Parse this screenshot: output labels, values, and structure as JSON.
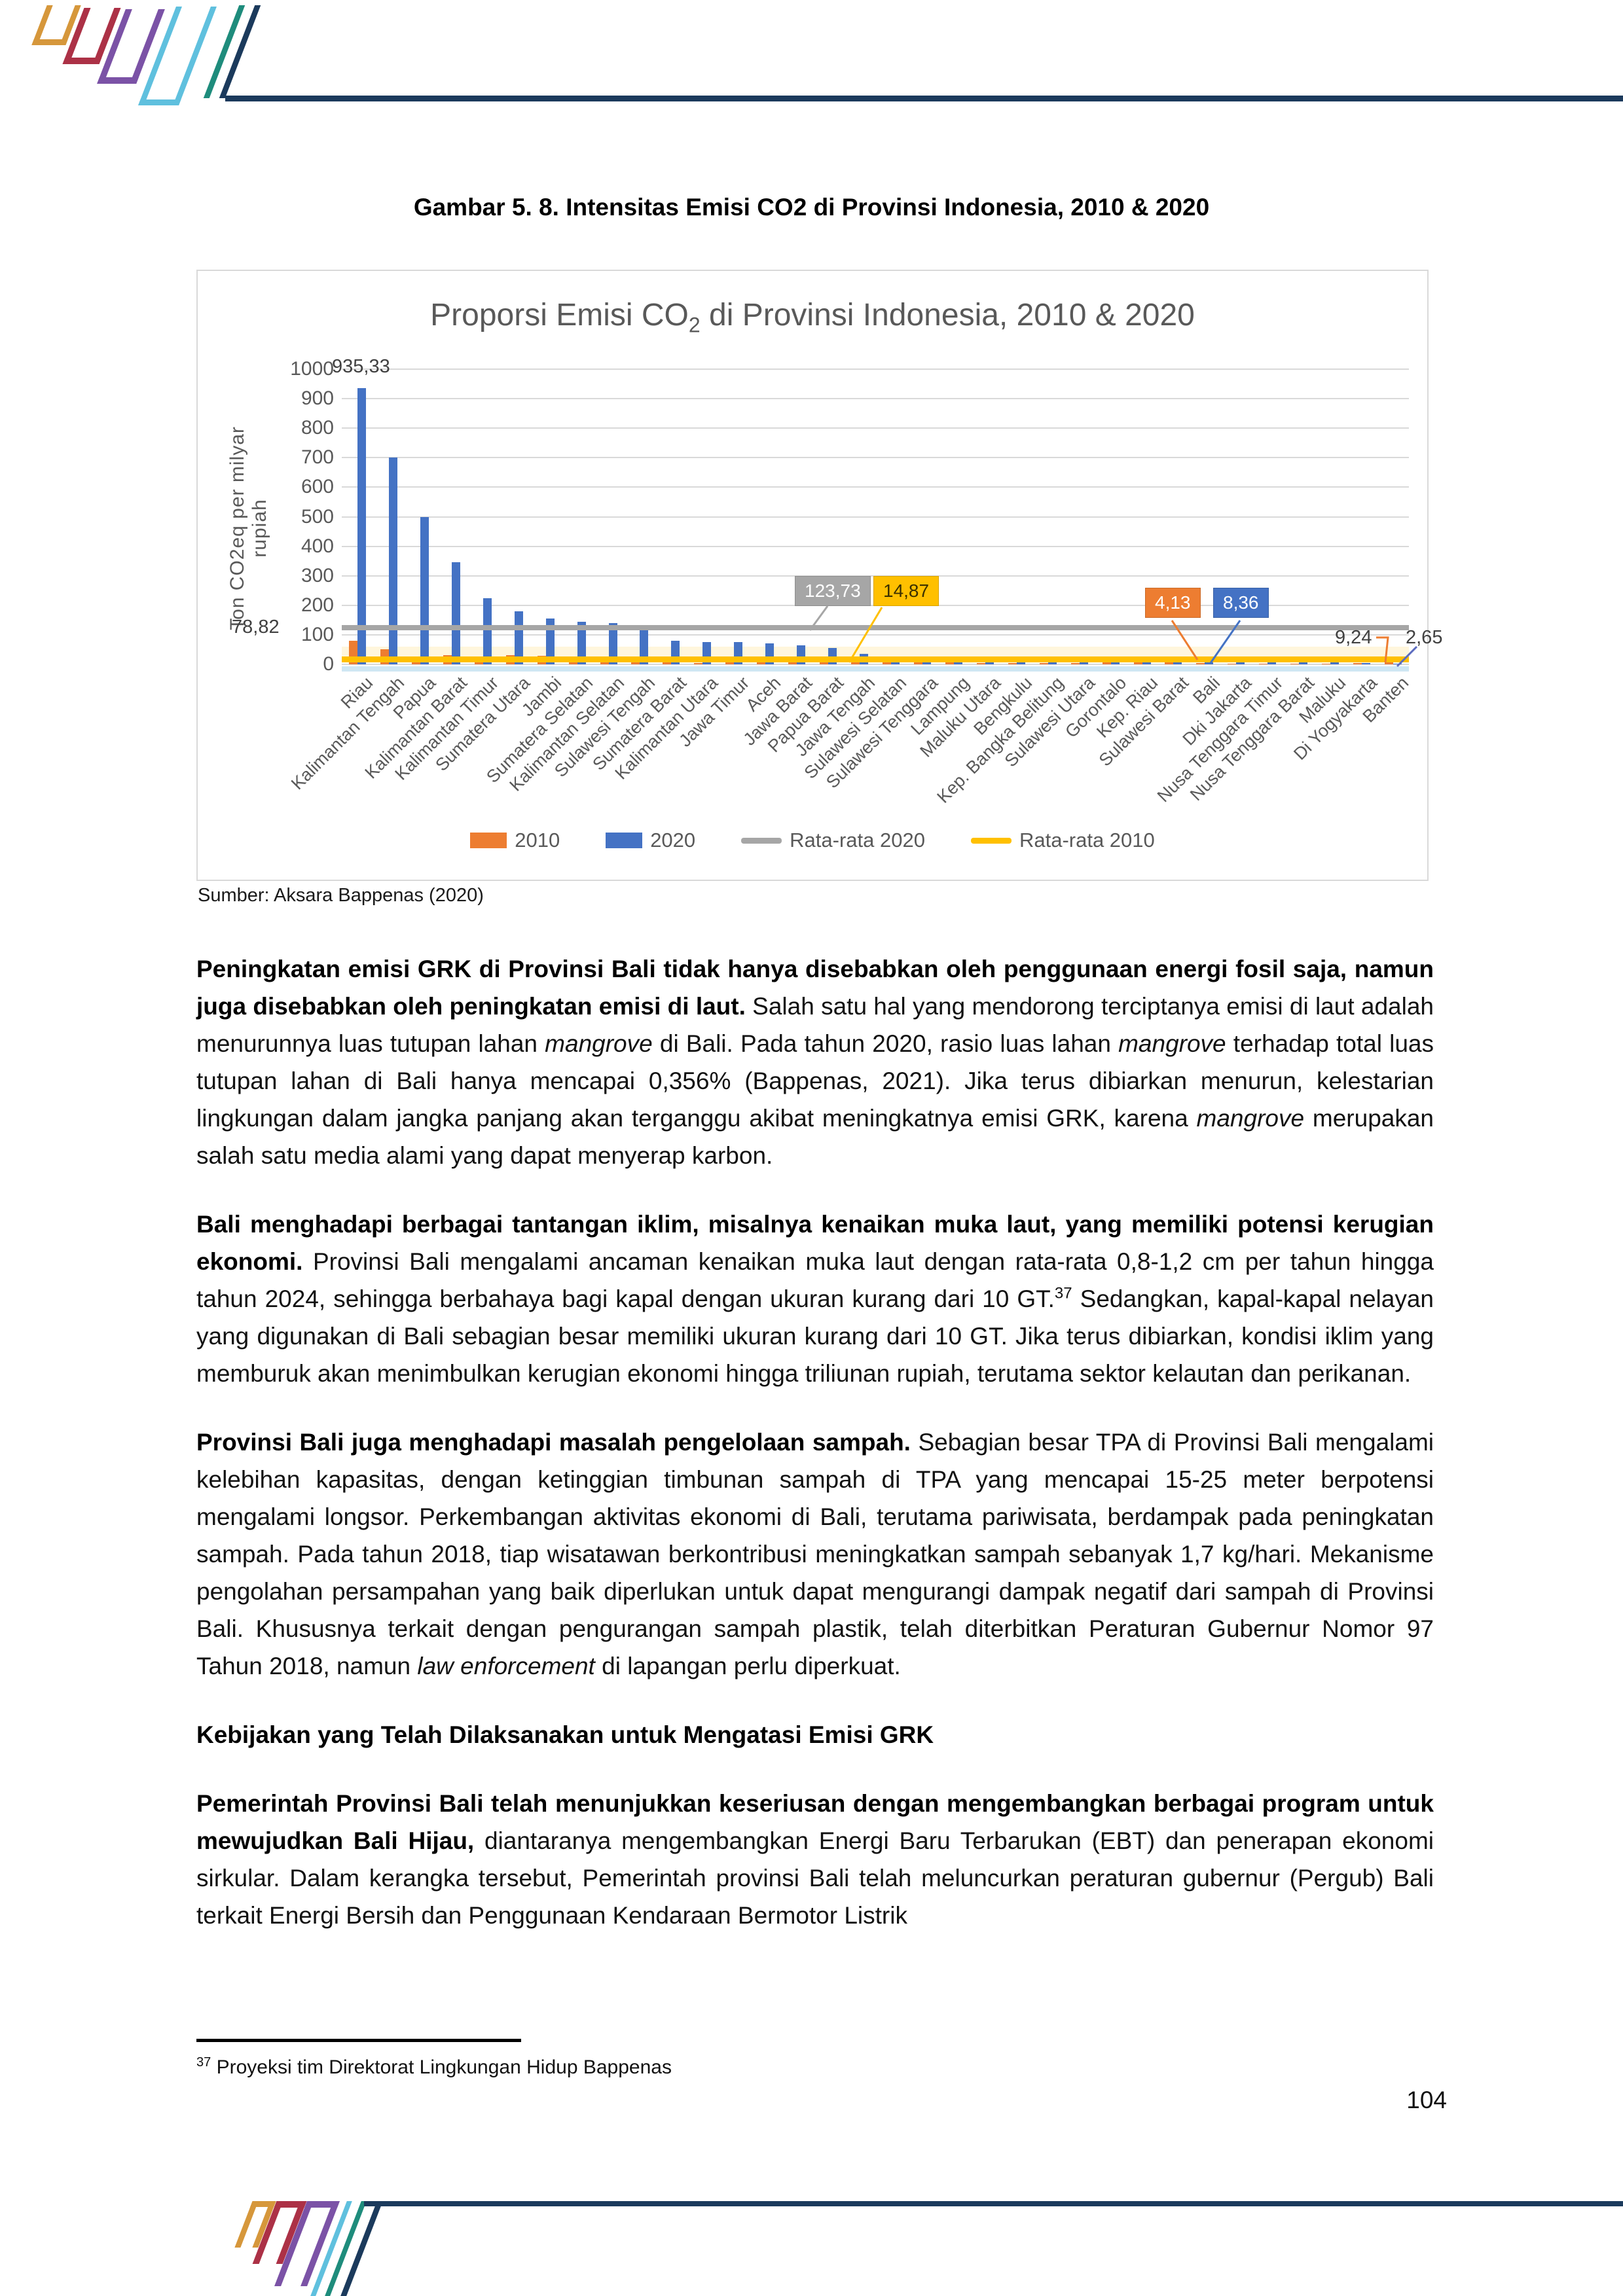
{
  "page": {
    "number": "104"
  },
  "figure": {
    "caption": "Gambar 5. 8. Intensitas Emisi CO2 di Provinsi Indonesia, 2010 & 2020"
  },
  "chart": {
    "title_prefix": "Proporsi Emisi CO",
    "title_sub": "2",
    "title_suffix": " di Provinsi Indonesia, 2010 & 2020",
    "y_axis_title": "Ton CO2eq per milyar rupiah",
    "source": "Sumber: Aksara Bappenas (2020)"
  },
  "chart_data": {
    "type": "bar",
    "title": "Proporsi Emisi CO2 di Provinsi Indonesia, 2010 & 2020",
    "xlabel": "",
    "ylabel": "Ton CO2eq per milyar rupiah",
    "ylim": [
      0,
      1000
    ],
    "ytick_interval": 100,
    "grid": true,
    "legend_position": "bottom",
    "x_tick_rotation": 45,
    "categories": [
      "Riau",
      "Kalimantan Tengah",
      "Papua",
      "Kalimantan Barat",
      "Kalimantan Timur",
      "Sumatera Utara",
      "Jambi",
      "Sumatera Selatan",
      "Kalimantan Selatan",
      "Sulawesi Tengah",
      "Sumatera Barat",
      "Kalimantan Utara",
      "Jawa Timur",
      "Aceh",
      "Jawa Barat",
      "Papua Barat",
      "Jawa Tengah",
      "Sulawesi Selatan",
      "Sulawesi Tenggara",
      "Lampung",
      "Maluku Utara",
      "Bengkulu",
      "Kep. Bangka Belitung",
      "Sulawesi Utara",
      "Gorontalo",
      "Kep. Riau",
      "Sulawesi Barat",
      "Bali",
      "Dki Jakarta",
      "Nusa Tenggara Timur",
      "Nusa Tenggara Barat",
      "Maluku",
      "Di Yogyakarta",
      "Banten"
    ],
    "series": [
      {
        "name": "2010",
        "color": "#ED7D31",
        "values": [
          78.82,
          52,
          22,
          30,
          10,
          30,
          28,
          8,
          12,
          8,
          22,
          5,
          10,
          25,
          8,
          22,
          8,
          10,
          8,
          6,
          5,
          5,
          5,
          4,
          8,
          12,
          25,
          4.13,
          3,
          3,
          3,
          3,
          5,
          9.24
        ]
      },
      {
        "name": "2020",
        "color": "#4472C4",
        "values": [
          935.33,
          700,
          500,
          345,
          225,
          180,
          155,
          145,
          140,
          120,
          80,
          75,
          75,
          70,
          65,
          55,
          35,
          22,
          20,
          18,
          15,
          12,
          12,
          10,
          10,
          12,
          8,
          8.36,
          8,
          7,
          6,
          6,
          5,
          2.65
        ]
      }
    ],
    "avg_lines": [
      {
        "name": "Rata-rata 2020",
        "color": "#A6A6A6",
        "value": 123.73
      },
      {
        "name": "Rata-rata 2010",
        "color": "#FFC000",
        "value": 14.87
      }
    ],
    "data_labels": [
      {
        "text": "935,33",
        "series": "2020",
        "category": "Riau",
        "style": "plain"
      },
      {
        "text": "78,82",
        "series": "2010",
        "category": "Riau",
        "style": "plain"
      },
      {
        "text": "123,73",
        "series": "Rata-rata 2020",
        "style": "callout-gray"
      },
      {
        "text": "14,87",
        "series": "Rata-rata 2010",
        "style": "callout-yellow"
      },
      {
        "text": "4,13",
        "series": "2010",
        "category": "Bali",
        "style": "callout-orange"
      },
      {
        "text": "8,36",
        "series": "2020",
        "category": "Bali",
        "style": "callout-blue"
      },
      {
        "text": "9,24",
        "series": "2010",
        "category": "Banten",
        "style": "plain"
      },
      {
        "text": "2,65",
        "series": "2020",
        "category": "Banten",
        "style": "plain"
      }
    ],
    "legend": [
      "2010",
      "2020",
      "Rata-rata 2020",
      "Rata-rata 2010"
    ]
  },
  "body": {
    "p1": {
      "runs": [
        {
          "s": "b",
          "t": "Peningkatan emisi GRK di Provinsi Bali tidak hanya disebabkan oleh penggunaan energi fosil saja, namun juga disebabkan oleh peningkatan emisi di laut. "
        },
        {
          "s": "",
          "t": "Salah satu hal yang mendorong terciptanya emisi di laut adalah menurunnya luas tutupan lahan "
        },
        {
          "s": "i",
          "t": "mangrove"
        },
        {
          "s": "",
          "t": " di Bali. Pada tahun 2020, rasio luas lahan "
        },
        {
          "s": "i",
          "t": "mangrove"
        },
        {
          "s": "",
          "t": " terhadap total luas tutupan lahan di Bali hanya mencapai 0,356% (Bappenas, 2021). Jika terus dibiarkan menurun, kelestarian lingkungan dalam jangka panjang akan terganggu akibat meningkatnya emisi GRK, karena "
        },
        {
          "s": "i",
          "t": "mangrove"
        },
        {
          "s": "",
          "t": " merupakan salah satu media alami yang dapat menyerap karbon."
        }
      ]
    },
    "p2": {
      "runs": [
        {
          "s": "b",
          "t": "Bali menghadapi berbagai tantangan iklim, misalnya kenaikan muka laut, yang memiliki potensi kerugian ekonomi. "
        },
        {
          "s": "",
          "t": "Provinsi Bali mengalami ancaman kenaikan muka laut dengan rata-rata 0,8-1,2 cm per tahun hingga tahun 2024, sehingga berbahaya bagi kapal dengan ukuran kurang dari 10 GT."
        },
        {
          "s": "sup",
          "t": "37"
        },
        {
          "s": "",
          "t": " Sedangkan, kapal-kapal nelayan yang digunakan di Bali sebagian besar memiliki ukuran kurang dari 10 GT. Jika terus dibiarkan, kondisi iklim yang memburuk akan menimbulkan kerugian ekonomi hingga triliunan rupiah, terutama sektor kelautan dan perikanan."
        }
      ]
    },
    "p3": {
      "runs": [
        {
          "s": "b",
          "t": "Provinsi Bali juga menghadapi masalah pengelolaan sampah. "
        },
        {
          "s": "",
          "t": "Sebagian besar TPA di Provinsi Bali mengalami kelebihan kapasitas, dengan ketinggian timbunan sampah di TPA yang mencapai 15-25 meter berpotensi mengalami longsor. Perkembangan aktivitas ekonomi di Bali, terutama pariwisata, berdampak pada peningkatan sampah. Pada tahun 2018, tiap wisatawan berkontribusi meningkatkan sampah sebanyak 1,7 kg/hari. Mekanisme pengolahan persampahan yang baik diperlukan untuk dapat mengurangi dampak negatif dari sampah di Provinsi Bali. Khususnya terkait dengan pengurangan sampah plastik, telah diterbitkan Peraturan Gubernur Nomor 97 Tahun 2018, namun "
        },
        {
          "s": "i",
          "t": "law enforcement"
        },
        {
          "s": "",
          "t": " di lapangan perlu diperkuat."
        }
      ]
    },
    "heading": "Kebijakan yang Telah Dilaksanakan untuk Mengatasi Emisi GRK",
    "p4": {
      "runs": [
        {
          "s": "b",
          "t": "Pemerintah Provinsi Bali telah menunjukkan keseriusan dengan mengembangkan berbagai program untuk mewujudkan Bali Hijau, "
        },
        {
          "s": "",
          "t": "diantaranya mengembangkan Energi Baru Terbarukan (EBT) dan penerapan ekonomi sirkular. Dalam kerangka tersebut, Pemerintah provinsi Bali telah meluncurkan peraturan gubernur (Pergub) Bali terkait Energi Bersih dan Penggunaan Kendaraan Bermotor Listrik"
        }
      ]
    }
  },
  "footnote": {
    "marker": "37",
    "text": " Proyeksi tim Direktorat Lingkungan Hidup Bappenas"
  },
  "colors": {
    "bar_2010": "#ED7D31",
    "bar_2020": "#4472C4",
    "avg_2020_line": "#A6A6A6",
    "avg_2010_line": "#FFC000",
    "deco_orange": "#D6973B",
    "deco_red": "#AC3146",
    "deco_purple": "#7B52A6",
    "deco_cyan": "#5FC0DE",
    "deco_teal": "#1E8C7C",
    "deco_navy": "#1B3A5C"
  }
}
